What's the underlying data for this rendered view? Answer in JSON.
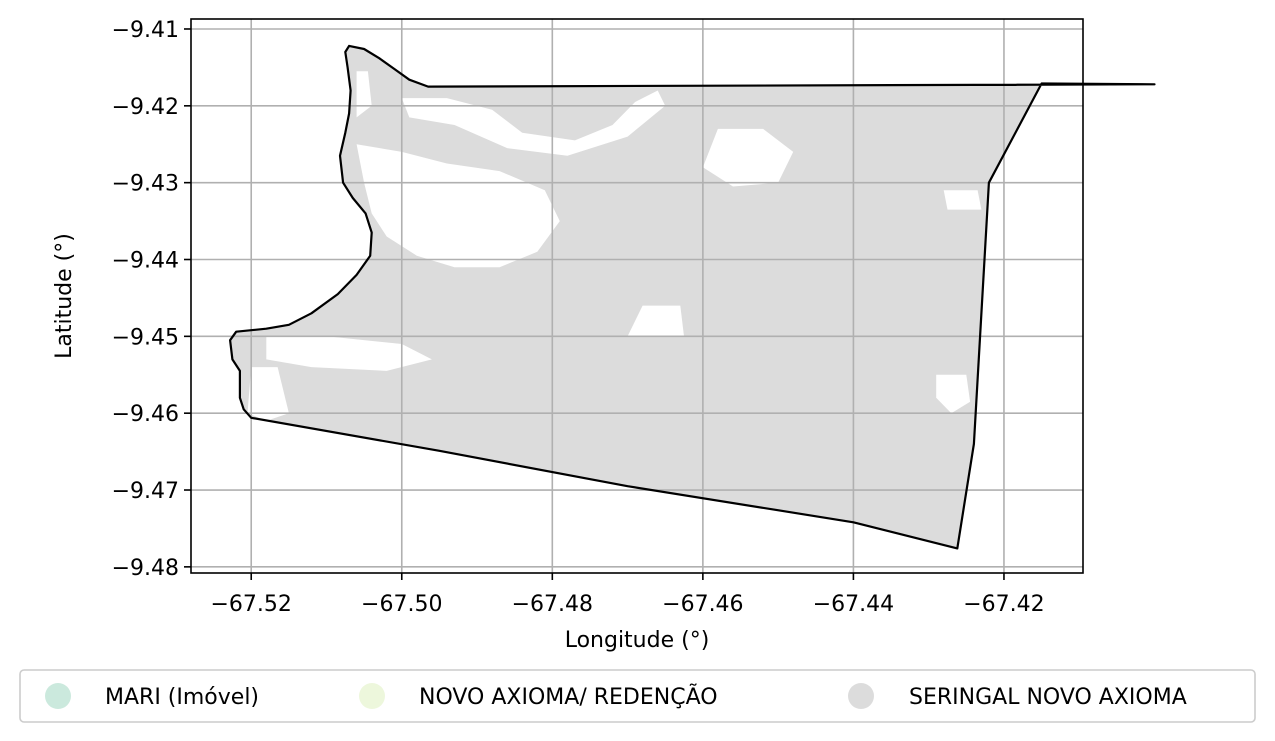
{
  "chart_data": {
    "type": "map",
    "xlabel": "Longitude (°)",
    "ylabel": "Latitude (°)",
    "xlim": [
      -67.528,
      -67.4095
    ],
    "ylim": [
      -9.4808,
      -9.4087
    ],
    "xticks": [
      -67.52,
      -67.5,
      -67.48,
      -67.46,
      -67.44,
      -67.42
    ],
    "xtick_labels": [
      "−67.52",
      "−67.50",
      "−67.48",
      "−67.46",
      "−67.44",
      "−67.42"
    ],
    "yticks": [
      -9.41,
      -9.42,
      -9.43,
      -9.44,
      -9.45,
      -9.46,
      -9.47,
      -9.48
    ],
    "ytick_labels": [
      "−9.41",
      "−9.42",
      "−9.43",
      "−9.44",
      "−9.45",
      "−9.46",
      "−9.47",
      "−9.48"
    ],
    "grid": true,
    "legend_position": "bottom",
    "legend": [
      {
        "label": "MARI (Imóvel)",
        "color": "#cbe9dd"
      },
      {
        "label": "NOVO AXIOMA/ REDENÇÃO",
        "color": "#edf7dc"
      },
      {
        "label": "SERINGAL NOVO AXIOMA",
        "color": "#dcdcdc"
      }
    ],
    "fill_color": "#dcdcdc",
    "boundary_color": "#000000",
    "boundary": [
      [
        -67.507,
        -9.4122
      ],
      [
        -67.505,
        -9.4126
      ],
      [
        -67.503,
        -9.4138
      ],
      [
        -67.501,
        -9.4152
      ],
      [
        -67.499,
        -9.4166
      ],
      [
        -67.4965,
        -9.4175
      ],
      [
        -67.4,
        -9.4172
      ],
      [
        -67.415,
        -9.4171
      ],
      [
        -67.422,
        -9.43
      ],
      [
        -67.424,
        -9.464
      ],
      [
        -67.4262,
        -9.4776
      ],
      [
        -67.44,
        -9.4742
      ],
      [
        -67.47,
        -9.4695
      ],
      [
        -67.495,
        -9.4649
      ],
      [
        -67.52,
        -9.4606
      ],
      [
        -67.521,
        -9.4595
      ],
      [
        -67.5215,
        -9.458
      ],
      [
        -67.5215,
        -9.4545
      ],
      [
        -67.5225,
        -9.453
      ],
      [
        -67.5228,
        -9.4505
      ],
      [
        -67.522,
        -9.4494
      ],
      [
        -67.518,
        -9.449
      ],
      [
        -67.515,
        -9.4485
      ],
      [
        -67.512,
        -9.447
      ],
      [
        -67.5085,
        -9.4445
      ],
      [
        -67.506,
        -9.442
      ],
      [
        -67.5042,
        -9.4395
      ],
      [
        -67.504,
        -9.4365
      ],
      [
        -67.5048,
        -9.434
      ],
      [
        -67.5065,
        -9.432
      ],
      [
        -67.5078,
        -9.43
      ],
      [
        -67.5082,
        -9.4265
      ],
      [
        -67.5075,
        -9.4235
      ],
      [
        -67.507,
        -9.421
      ],
      [
        -67.5068,
        -9.418
      ],
      [
        -67.5072,
        -9.415
      ],
      [
        -67.5075,
        -9.413
      ],
      [
        -67.507,
        -9.4122
      ]
    ],
    "unclassified_patches": [
      [
        [
          -67.506,
          -9.4155
        ],
        [
          -67.5045,
          -9.4155
        ],
        [
          -67.504,
          -9.42
        ],
        [
          -67.506,
          -9.4215
        ]
      ],
      [
        [
          -67.5,
          -9.419
        ],
        [
          -67.494,
          -9.419
        ],
        [
          -67.488,
          -9.4205
        ],
        [
          -67.484,
          -9.4235
        ],
        [
          -67.477,
          -9.4245
        ],
        [
          -67.472,
          -9.4225
        ],
        [
          -67.469,
          -9.4195
        ],
        [
          -67.466,
          -9.418
        ],
        [
          -67.465,
          -9.42
        ],
        [
          -67.47,
          -9.424
        ],
        [
          -67.478,
          -9.4265
        ],
        [
          -67.486,
          -9.4255
        ],
        [
          -67.493,
          -9.4225
        ],
        [
          -67.499,
          -9.4215
        ]
      ],
      [
        [
          -67.506,
          -9.425
        ],
        [
          -67.5,
          -9.426
        ],
        [
          -67.494,
          -9.4275
        ],
        [
          -67.487,
          -9.4285
        ],
        [
          -67.481,
          -9.431
        ],
        [
          -67.479,
          -9.435
        ],
        [
          -67.482,
          -9.439
        ],
        [
          -67.487,
          -9.441
        ],
        [
          -67.493,
          -9.441
        ],
        [
          -67.498,
          -9.4395
        ],
        [
          -67.502,
          -9.437
        ],
        [
          -67.504,
          -9.434
        ],
        [
          -67.505,
          -9.43
        ]
      ],
      [
        [
          -67.458,
          -9.423
        ],
        [
          -67.452,
          -9.423
        ],
        [
          -67.448,
          -9.426
        ],
        [
          -67.45,
          -9.43
        ],
        [
          -67.456,
          -9.4305
        ],
        [
          -67.46,
          -9.428
        ]
      ],
      [
        [
          -67.428,
          -9.431
        ],
        [
          -67.4235,
          -9.431
        ],
        [
          -67.423,
          -9.4335
        ],
        [
          -67.4275,
          -9.4335
        ]
      ],
      [
        [
          -67.468,
          -9.446
        ],
        [
          -67.463,
          -9.446
        ],
        [
          -67.4625,
          -9.45
        ],
        [
          -67.47,
          -9.45
        ]
      ],
      [
        [
          -67.518,
          -9.45
        ],
        [
          -67.51,
          -9.45
        ],
        [
          -67.5,
          -9.451
        ],
        [
          -67.496,
          -9.453
        ],
        [
          -67.502,
          -9.4545
        ],
        [
          -67.512,
          -9.454
        ],
        [
          -67.518,
          -9.453
        ]
      ],
      [
        [
          -67.52,
          -9.454
        ],
        [
          -67.5165,
          -9.454
        ],
        [
          -67.515,
          -9.46
        ],
        [
          -67.518,
          -9.461
        ],
        [
          -67.5205,
          -9.46
        ]
      ],
      [
        [
          -67.429,
          -9.455
        ],
        [
          -67.425,
          -9.455
        ],
        [
          -67.4245,
          -9.4585
        ],
        [
          -67.427,
          -9.46
        ],
        [
          -67.429,
          -9.458
        ]
      ]
    ]
  }
}
